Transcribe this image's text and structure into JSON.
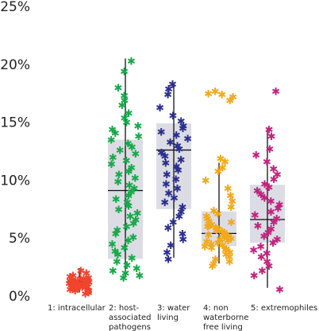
{
  "chart_data": {
    "type": "box",
    "title": "",
    "xlabel": "",
    "ylabel": "",
    "ylim": [
      0,
      0.25
    ],
    "y_tick_labels": [
      "0%",
      "5%",
      "10%",
      "15%",
      "20%",
      "25%"
    ],
    "y_ticks": [
      0,
      0.05,
      0.1,
      0.15,
      0.2,
      0.25
    ],
    "grid": false,
    "legend": "none",
    "box_color": "#dcdde4",
    "series": [
      {
        "category_lines": [
          "1: intracellular"
        ],
        "color": "#f0442d",
        "min": 0.003,
        "q1": 0.009,
        "median": 0.0125,
        "q3": 0.015,
        "max": 0.024,
        "points": [
          0.024,
          0.022,
          0.02,
          0.019,
          0.018,
          0.017,
          0.017,
          0.016,
          0.016,
          0.015,
          0.015,
          0.015,
          0.014,
          0.014,
          0.014,
          0.013,
          0.013,
          0.013,
          0.013,
          0.012,
          0.012,
          0.012,
          0.011,
          0.011,
          0.011,
          0.01,
          0.01,
          0.01,
          0.009,
          0.009,
          0.008,
          0.008,
          0.007,
          0.007,
          0.006,
          0.005,
          0.004
        ]
      },
      {
        "category_lines": [
          "2: host-",
          "associated",
          "pathogens"
        ],
        "color": "#18a94a",
        "min": 0.017,
        "q1": 0.032,
        "median": 0.091,
        "q3": 0.135,
        "max": 0.205,
        "points": [
          0.205,
          0.196,
          0.182,
          0.175,
          0.171,
          0.167,
          0.16,
          0.156,
          0.152,
          0.149,
          0.146,
          0.143,
          0.14,
          0.137,
          0.134,
          0.131,
          0.128,
          0.125,
          0.122,
          0.119,
          0.116,
          0.113,
          0.11,
          0.107,
          0.104,
          0.101,
          0.098,
          0.095,
          0.092,
          0.089,
          0.086,
          0.083,
          0.08,
          0.077,
          0.074,
          0.071,
          0.068,
          0.065,
          0.062,
          0.059,
          0.056,
          0.053,
          0.05,
          0.047,
          0.044,
          0.041,
          0.038,
          0.035,
          0.032,
          0.029,
          0.026,
          0.024,
          0.022,
          0.02,
          0.018
        ]
      },
      {
        "category_lines": [
          "3: water",
          "living"
        ],
        "color": "#2b2f8f",
        "min": 0.033,
        "q1": 0.075,
        "median": 0.126,
        "q3": 0.149,
        "max": 0.184,
        "points": [
          0.185,
          0.181,
          0.176,
          0.165,
          0.158,
          0.153,
          0.149,
          0.147,
          0.144,
          0.141,
          0.138,
          0.135,
          0.132,
          0.129,
          0.126,
          0.123,
          0.12,
          0.117,
          0.114,
          0.111,
          0.107,
          0.103,
          0.099,
          0.095,
          0.091,
          0.087,
          0.083,
          0.079,
          0.075,
          0.071,
          0.066,
          0.061,
          0.056,
          0.051,
          0.046,
          0.04,
          0.034
        ]
      },
      {
        "category_lines": [
          "4: non",
          "waterborne",
          "free living"
        ],
        "color": "#f2a91c",
        "min": 0.028,
        "q1": 0.043,
        "median": 0.054,
        "q3": 0.073,
        "max": 0.115,
        "points": [
          0.179,
          0.177,
          0.176,
          0.174,
          0.171,
          0.121,
          0.118,
          0.113,
          0.11,
          0.102,
          0.095,
          0.089,
          0.084,
          0.079,
          0.076,
          0.073,
          0.071,
          0.069,
          0.067,
          0.066,
          0.064,
          0.063,
          0.062,
          0.061,
          0.06,
          0.059,
          0.058,
          0.057,
          0.056,
          0.055,
          0.054,
          0.053,
          0.052,
          0.051,
          0.05,
          0.049,
          0.048,
          0.047,
          0.046,
          0.045,
          0.044,
          0.043,
          0.042,
          0.04,
          0.038,
          0.036,
          0.034,
          0.032,
          0.03,
          0.028
        ]
      },
      {
        "category_lines": [
          "5: extremophiles"
        ],
        "color": "#c2237f",
        "min": 0.007,
        "q1": 0.046,
        "median": 0.066,
        "q3": 0.096,
        "max": 0.145,
        "points": [
          0.179,
          0.146,
          0.14,
          0.129,
          0.124,
          0.118,
          0.112,
          0.107,
          0.103,
          0.099,
          0.096,
          0.093,
          0.09,
          0.087,
          0.084,
          0.081,
          0.078,
          0.075,
          0.072,
          0.069,
          0.066,
          0.063,
          0.06,
          0.057,
          0.054,
          0.051,
          0.048,
          0.045,
          0.042,
          0.039,
          0.036,
          0.032,
          0.028,
          0.024,
          0.02,
          0.008
        ]
      }
    ]
  }
}
